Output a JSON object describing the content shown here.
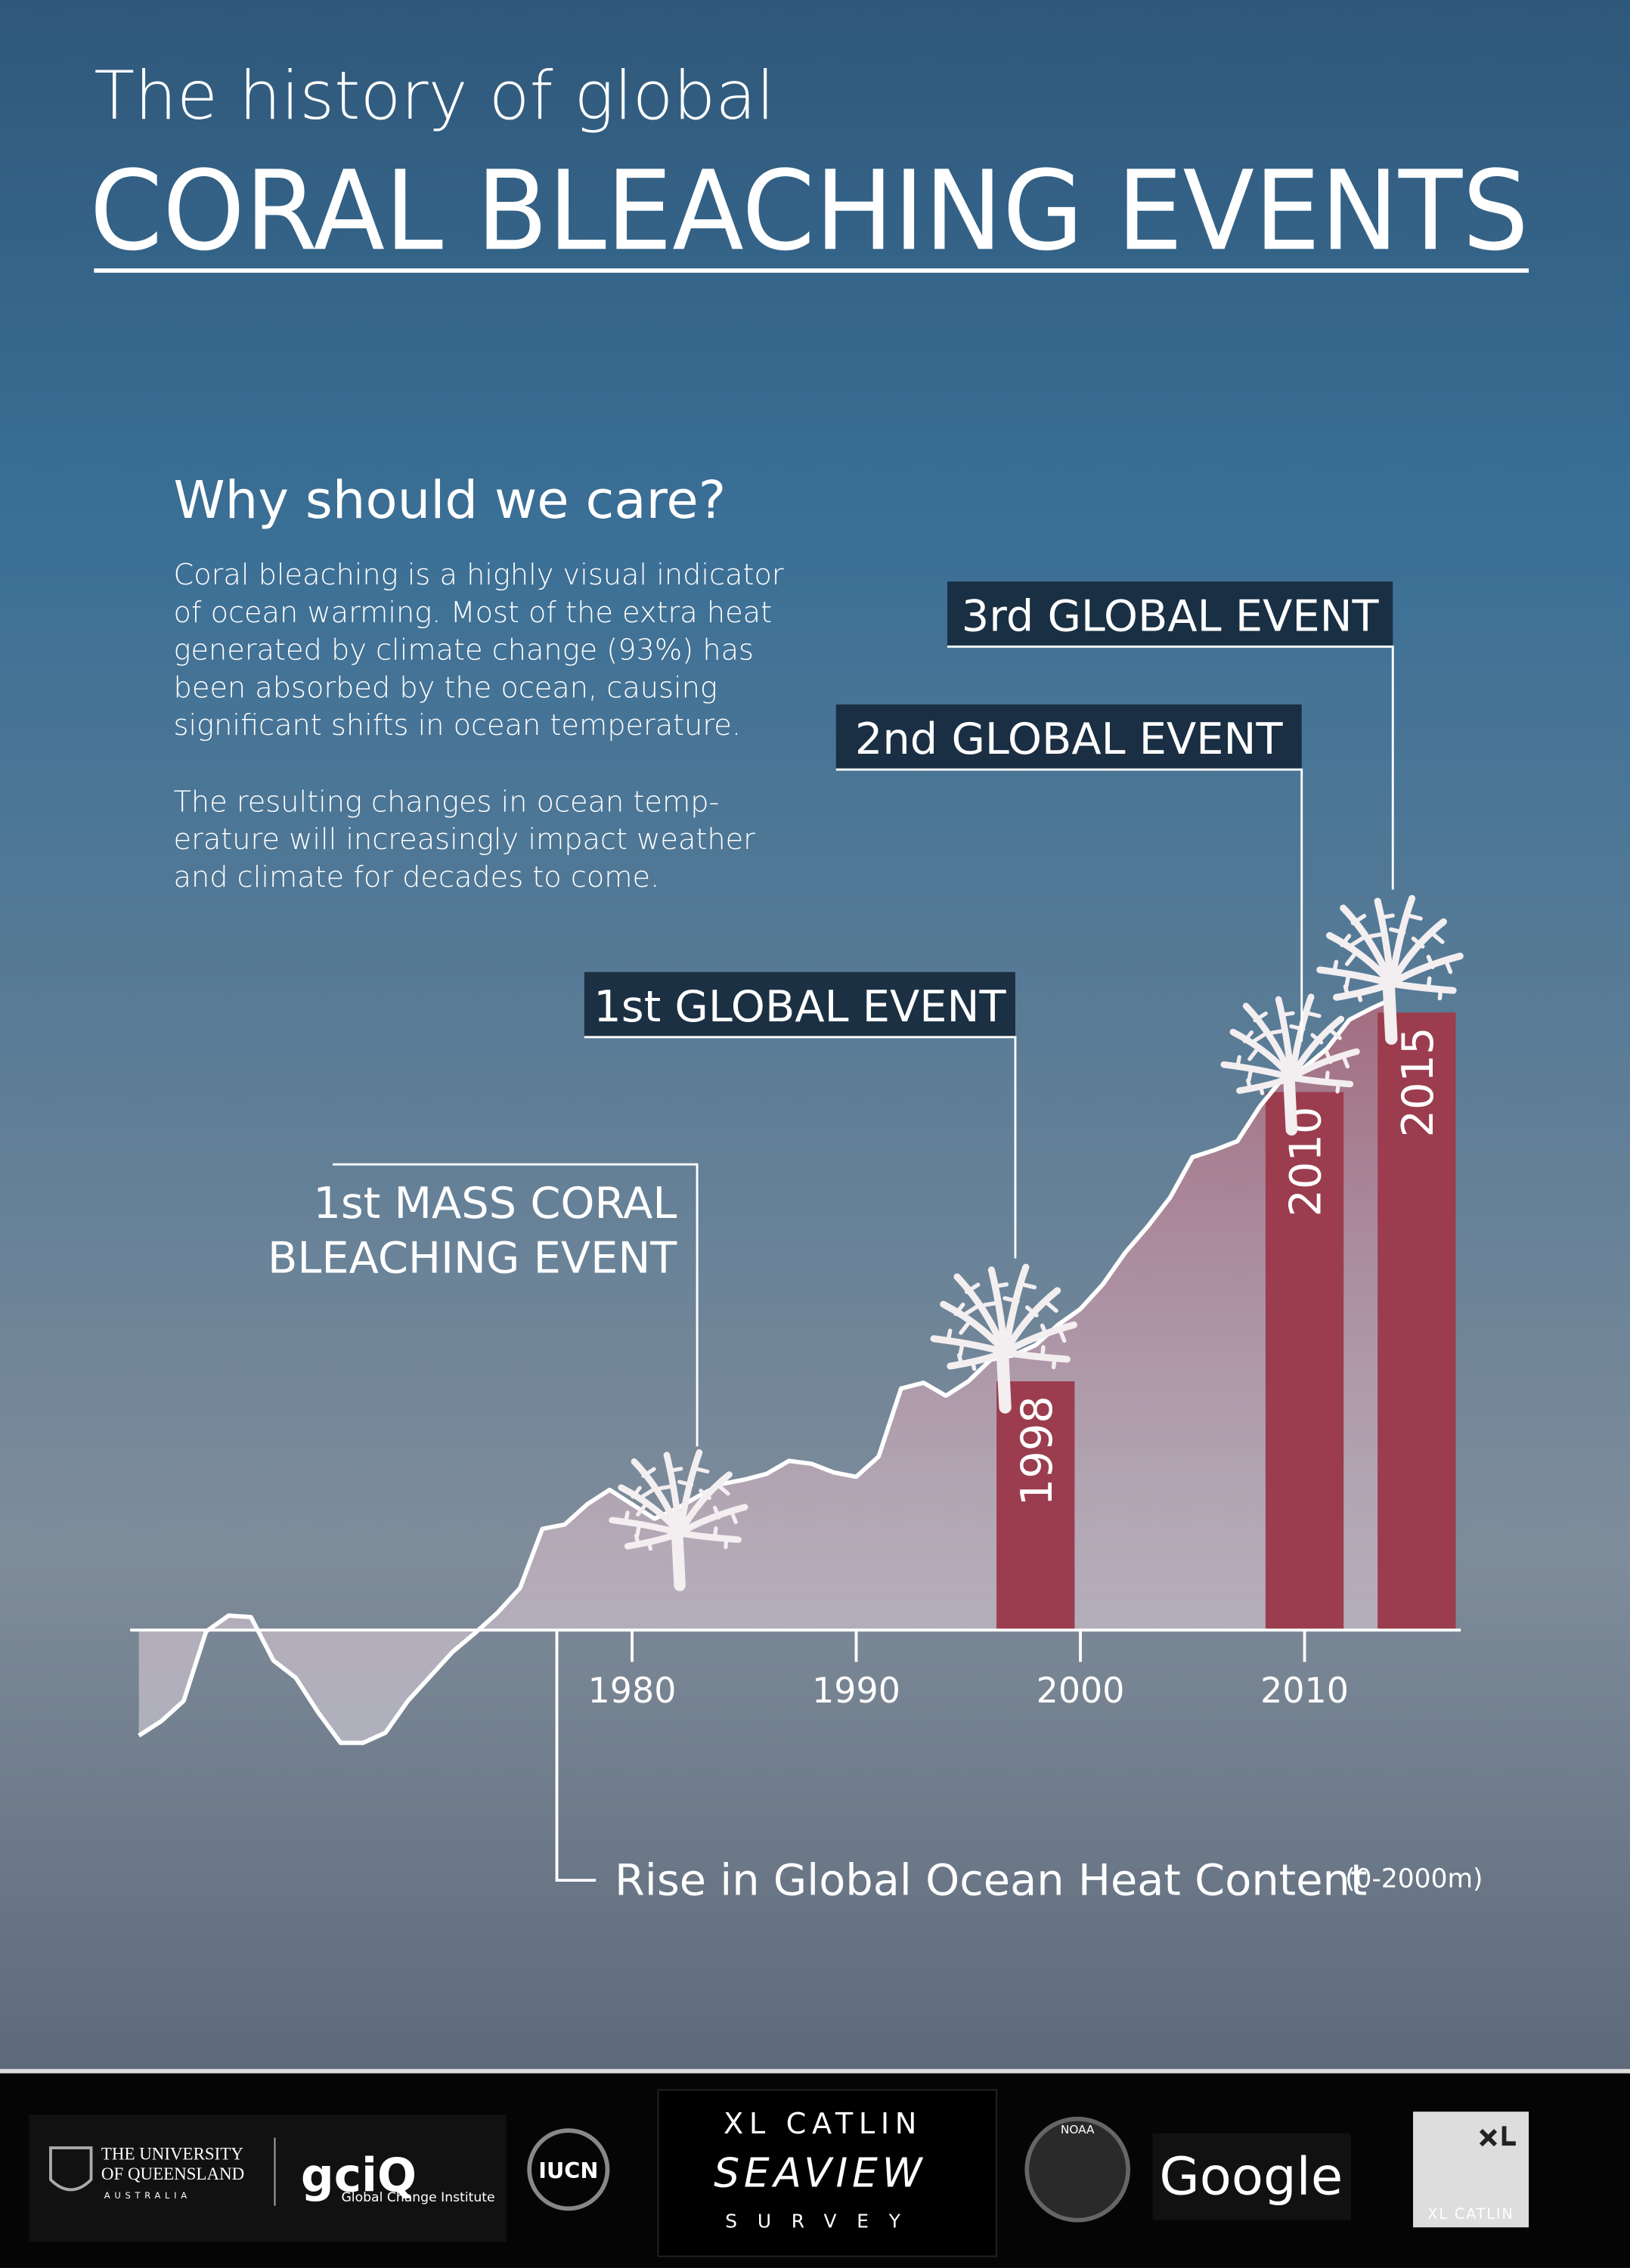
{
  "header": {
    "title_line1": "The history of global",
    "title_line2": "CORAL BLEACHING EVENTS"
  },
  "intro": {
    "heading": "Why should we care?",
    "paragraph1": [
      "Coral bleaching is a highly visual indicator",
      "of ocean warming. Most of the extra heat",
      "generated by climate change (93%) has",
      "been absorbed by the ocean, causing",
      "significant shifts in ocean temperature."
    ],
    "paragraph2": [
      "The resulting changes in ocean temp-",
      "erature will increasingly impact weather",
      "and climate for decades to come."
    ]
  },
  "chart_data": {
    "type": "line",
    "x_label": "Rise in Global Ocean Heat Content",
    "x_label_note": "(0-2000m)",
    "x": [
      1958,
      1959,
      1960,
      1961,
      1962,
      1963,
      1964,
      1965,
      1966,
      1967,
      1968,
      1969,
      1970,
      1971,
      1972,
      1973,
      1974,
      1975,
      1976,
      1977,
      1978,
      1979,
      1980,
      1981,
      1982,
      1983,
      1984,
      1985,
      1986,
      1987,
      1988,
      1989,
      1990,
      1991,
      1992,
      1993,
      1994,
      1995,
      1996,
      1997,
      1998,
      1999,
      2000,
      2001,
      2002,
      2003,
      2004,
      2005,
      2006,
      2007,
      2008,
      2009,
      2010,
      2011,
      2012,
      2013,
      2014
    ],
    "values": [
      -7.3,
      -6.3,
      -4.9,
      -0.1,
      1.0,
      0.9,
      -2.1,
      -3.3,
      -5.7,
      -7.8,
      -7.8,
      -7.1,
      -4.9,
      -3.2,
      -1.5,
      -0.2,
      1.2,
      2.9,
      7.0,
      7.3,
      8.7,
      9.7,
      8.7,
      7.7,
      8.4,
      9.3,
      10.1,
      10.4,
      10.8,
      11.7,
      11.5,
      10.9,
      10.6,
      12.0,
      16.7,
      17.1,
      16.2,
      17.2,
      18.7,
      19.0,
      19.7,
      21.1,
      22.2,
      23.9,
      26.1,
      27.9,
      29.9,
      32.7,
      33.2,
      33.8,
      36.2,
      38.1,
      38.9,
      40.2,
      42.2,
      43.0,
      43.7
    ],
    "color": "#ffffff",
    "area_color": "#c98a98",
    "xlim": [
      1955,
      2017
    ],
    "xticks": [
      1980,
      1990,
      2000,
      2010
    ],
    "ylim": [
      -10,
      50
    ],
    "events": {
      "color": "#9b3d4f",
      "years": [
        1998,
        2010,
        2015
      ],
      "values": [
        17.2,
        37.2,
        42.7
      ]
    },
    "annotations": {
      "mass": [
        "1st MASS CORAL",
        "BLEACHING EVENT"
      ],
      "first": "1st GLOBAL EVENT",
      "second": "2nd GLOBAL EVENT",
      "third": "3rd GLOBAL EVENT"
    }
  },
  "footer": {
    "uq1": "THE UNIVERSITY",
    "uq2": "OF QUEENSLAND",
    "uq3": "AUSTRALIA",
    "gciq": "gciQ",
    "gci": "Global Change Institute",
    "iucn": "IUCN",
    "xl": "XL CATLIN",
    "seaview": "SEAVIEW",
    "survey": "SURVEY",
    "noaa": "NOAA",
    "google": "Google",
    "xl2": "XL CATLIN"
  }
}
